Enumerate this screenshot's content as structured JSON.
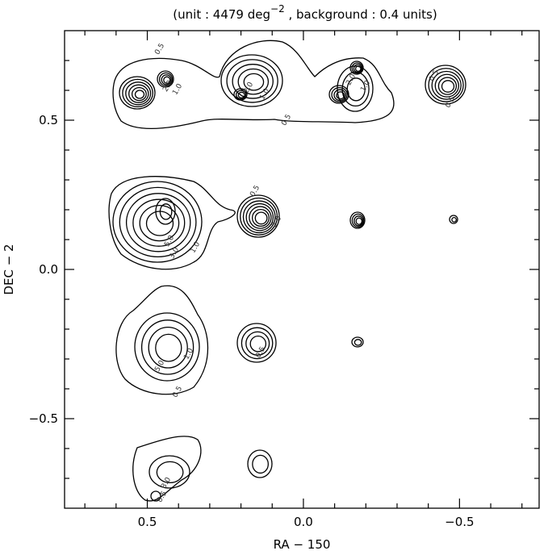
{
  "chart_data": {
    "type": "contour",
    "title": "(unit :  4479 deg",
    "title_superscript": "−2",
    "title_suffix": " , background : 0.4 units)",
    "x_label": "RA − 150",
    "y_label": "DEC − 2",
    "xlim": [
      0.765,
      -0.755
    ],
    "ylim": [
      -0.8,
      0.8
    ],
    "xticks": [
      0.5,
      {
        "value": 0,
        "label": "0.0"
      },
      {
        "value": -0.5,
        "label": "−0.5"
      }
    ],
    "yticks": [
      {
        "value": -0.5,
        "label": "−0.5"
      },
      {
        "value": 0,
        "label": "0.0"
      },
      0.5
    ],
    "xminorticks": [
      0.7,
      0.6,
      0.4,
      0.3,
      0.2,
      0.1,
      -0.1,
      -0.2,
      -0.3,
      -0.4,
      -0.6,
      -0.7
    ],
    "yminorticks": [
      -0.7,
      -0.6,
      -0.4,
      -0.3,
      -0.2,
      -0.1,
      0.1,
      0.2,
      0.3,
      0.4,
      0.6,
      0.7
    ],
    "contour_labels": [
      0.5,
      {
        "value": 2,
        "label": "2.0"
      },
      {
        "value": 1,
        "label": "1.0"
      },
      {
        "value": 2,
        "label": "2.0"
      },
      {
        "value": 1,
        "label": "1.0"
      },
      0.5,
      {
        "value": 2,
        "label": "2.0"
      },
      {
        "value": 1,
        "label": "1.0"
      },
      0.5,
      0.5,
      {
        "value": 5,
        "label": "5.0"
      },
      {
        "value": 3,
        "label": "3.0"
      },
      {
        "value": 1,
        "label": "1.0"
      },
      0.5,
      {
        "value": 2,
        "label": "2.0"
      },
      {
        "value": 5,
        "label": "5.0"
      },
      {
        "value": 1,
        "label": "1.0"
      },
      0.5,
      0.5,
      {
        "value": 3,
        "label": "3.0"
      },
      0.5
    ]
  }
}
